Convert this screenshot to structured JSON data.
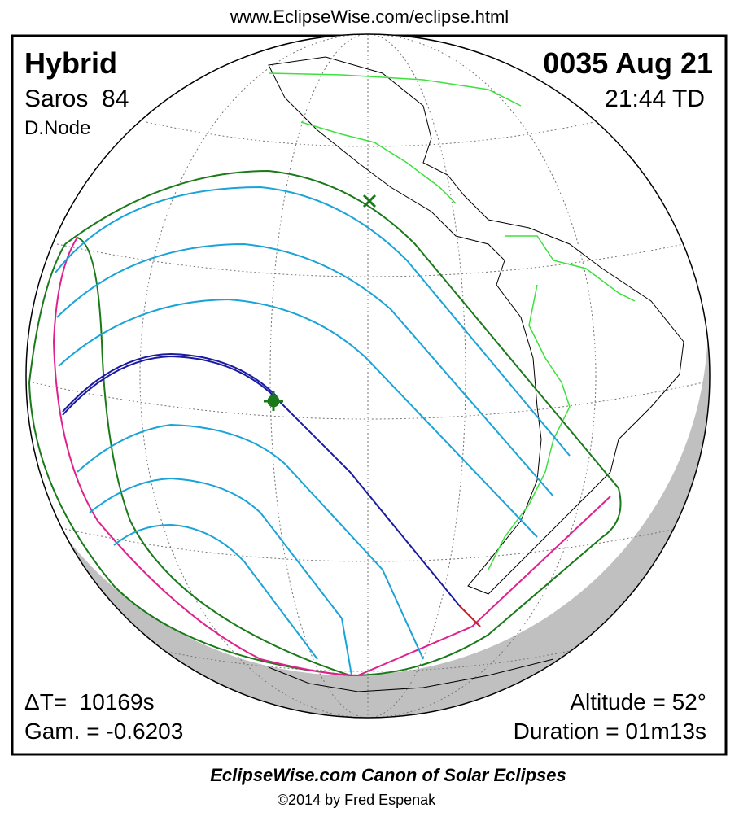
{
  "header": {
    "url": "www.EclipseWise.com/eclipse.html"
  },
  "top_left": {
    "type": "Hybrid",
    "saros": "Saros  84",
    "node": "D.Node"
  },
  "top_right": {
    "date": "0035 Aug 21",
    "time": "21:44 TD"
  },
  "bottom_left": {
    "delta_t": "ΔT=  10169s",
    "gamma": "Gam. = -0.6203"
  },
  "bottom_right": {
    "altitude": "Altitude = 52°",
    "duration": "Duration = 01m13s"
  },
  "footer": {
    "title": "EclipseWise.com Canon of Solar Eclipses",
    "credit": "©2014 by Fred Espenak"
  }
}
